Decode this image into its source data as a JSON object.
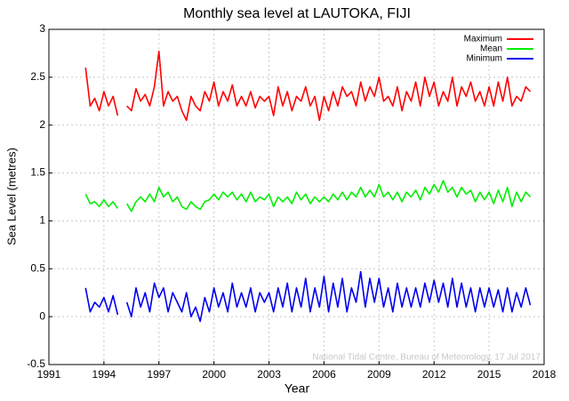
{
  "chart_data": {
    "type": "line",
    "title": "Monthly sea level at LAUTOKA, FIJI",
    "x_label": "Year",
    "y_label": "Sea Level (metres)",
    "source": "National Tidal Centre, Bureau of Meteorology, 17 Jul 2017",
    "x": [
      1993,
      1993.25,
      1993.5,
      1993.75,
      1994,
      1994.25,
      1994.5,
      1994.75,
      1995,
      1995.25,
      1995.5,
      1995.75,
      1996,
      1996.25,
      1996.5,
      1996.75,
      1997,
      1997.25,
      1997.5,
      1997.75,
      1998,
      1998.25,
      1998.5,
      1998.75,
      1999,
      1999.25,
      1999.5,
      1999.75,
      2000,
      2000.25,
      2000.5,
      2000.75,
      2001,
      2001.25,
      2001.5,
      2001.75,
      2002,
      2002.25,
      2002.5,
      2002.75,
      2003,
      2003.25,
      2003.5,
      2003.75,
      2004,
      2004.25,
      2004.5,
      2004.75,
      2005,
      2005.25,
      2005.5,
      2005.75,
      2006,
      2006.25,
      2006.5,
      2006.75,
      2007,
      2007.25,
      2007.5,
      2007.75,
      2008,
      2008.25,
      2008.5,
      2008.75,
      2009,
      2009.25,
      2009.5,
      2009.75,
      2010,
      2010.25,
      2010.5,
      2010.75,
      2011,
      2011.25,
      2011.5,
      2011.75,
      2012,
      2012.25,
      2012.5,
      2012.75,
      2013,
      2013.25,
      2013.5,
      2013.75,
      2014,
      2014.25,
      2014.5,
      2014.75,
      2015,
      2015.25,
      2015.5,
      2015.75,
      2016,
      2016.25,
      2016.5,
      2016.75,
      2017,
      2017.25
    ],
    "series": [
      {
        "name": "Maximum",
        "color": "#ff0000",
        "values": [
          2.6,
          2.2,
          2.28,
          2.15,
          2.35,
          2.2,
          2.3,
          2.1,
          null,
          2.2,
          2.15,
          2.38,
          2.25,
          2.32,
          2.2,
          2.4,
          2.77,
          2.2,
          2.35,
          2.25,
          2.3,
          2.15,
          2.05,
          2.3,
          2.2,
          2.15,
          2.35,
          2.25,
          2.45,
          2.2,
          2.35,
          2.25,
          2.42,
          2.2,
          2.3,
          2.2,
          2.35,
          2.18,
          2.3,
          2.25,
          2.3,
          2.1,
          2.4,
          2.2,
          2.35,
          2.15,
          2.3,
          2.25,
          2.4,
          2.2,
          2.3,
          2.05,
          2.3,
          2.15,
          2.35,
          2.2,
          2.4,
          2.3,
          2.35,
          2.2,
          2.45,
          2.25,
          2.4,
          2.3,
          2.5,
          2.25,
          2.3,
          2.2,
          2.4,
          2.15,
          2.35,
          2.25,
          2.45,
          2.2,
          2.5,
          2.3,
          2.45,
          2.2,
          2.35,
          2.25,
          2.5,
          2.2,
          2.4,
          2.3,
          2.45,
          2.25,
          2.35,
          2.2,
          2.4,
          2.2,
          2.45,
          2.25,
          2.5,
          2.2,
          2.3,
          2.25,
          2.4,
          2.35
        ]
      },
      {
        "name": "Mean",
        "color": "#00ee00",
        "values": [
          1.28,
          1.18,
          1.2,
          1.15,
          1.22,
          1.15,
          1.2,
          1.13,
          null,
          1.18,
          1.1,
          1.2,
          1.25,
          1.2,
          1.28,
          1.2,
          1.35,
          1.25,
          1.3,
          1.2,
          1.25,
          1.15,
          1.12,
          1.2,
          1.15,
          1.12,
          1.2,
          1.22,
          1.28,
          1.22,
          1.3,
          1.25,
          1.3,
          1.22,
          1.28,
          1.2,
          1.3,
          1.2,
          1.25,
          1.22,
          1.28,
          1.15,
          1.25,
          1.2,
          1.25,
          1.18,
          1.3,
          1.22,
          1.28,
          1.18,
          1.25,
          1.2,
          1.25,
          1.2,
          1.28,
          1.22,
          1.3,
          1.22,
          1.3,
          1.25,
          1.35,
          1.25,
          1.32,
          1.25,
          1.38,
          1.25,
          1.3,
          1.22,
          1.3,
          1.2,
          1.3,
          1.25,
          1.32,
          1.22,
          1.35,
          1.28,
          1.38,
          1.3,
          1.42,
          1.3,
          1.35,
          1.25,
          1.35,
          1.28,
          1.32,
          1.2,
          1.3,
          1.22,
          1.3,
          1.18,
          1.32,
          1.2,
          1.35,
          1.15,
          1.3,
          1.2,
          1.3,
          1.25
        ]
      },
      {
        "name": "Minimum",
        "color": "#0000ee",
        "values": [
          0.3,
          0.05,
          0.15,
          0.1,
          0.2,
          0.05,
          0.22,
          0.02,
          null,
          0.15,
          0.0,
          0.3,
          0.1,
          0.25,
          0.05,
          0.35,
          0.2,
          0.3,
          0.05,
          0.25,
          0.15,
          0.05,
          0.25,
          0.0,
          0.1,
          -0.05,
          0.2,
          0.05,
          0.3,
          0.1,
          0.25,
          0.05,
          0.35,
          0.1,
          0.25,
          0.1,
          0.3,
          0.05,
          0.25,
          0.15,
          0.25,
          0.05,
          0.3,
          0.1,
          0.35,
          0.05,
          0.3,
          0.1,
          0.4,
          0.05,
          0.3,
          0.1,
          0.42,
          0.05,
          0.35,
          0.1,
          0.4,
          0.05,
          0.3,
          0.15,
          0.47,
          0.1,
          0.4,
          0.15,
          0.4,
          0.1,
          0.3,
          0.05,
          0.35,
          0.1,
          0.3,
          0.1,
          0.3,
          0.1,
          0.35,
          0.15,
          0.38,
          0.15,
          0.35,
          0.1,
          0.4,
          0.1,
          0.35,
          0.1,
          0.3,
          0.05,
          0.3,
          0.1,
          0.3,
          0.1,
          0.28,
          0.05,
          0.3,
          0.05,
          0.25,
          0.1,
          0.3,
          0.12
        ]
      }
    ],
    "xlim": [
      1991,
      2018
    ],
    "xticks": [
      1991,
      1994,
      1997,
      2000,
      2003,
      2006,
      2009,
      2012,
      2015,
      2018
    ],
    "ylim": [
      -0.5,
      3
    ],
    "yticks": [
      -0.5,
      0,
      0.5,
      1,
      1.5,
      2,
      2.5,
      3
    ],
    "grid": true,
    "legend": "upper right"
  }
}
